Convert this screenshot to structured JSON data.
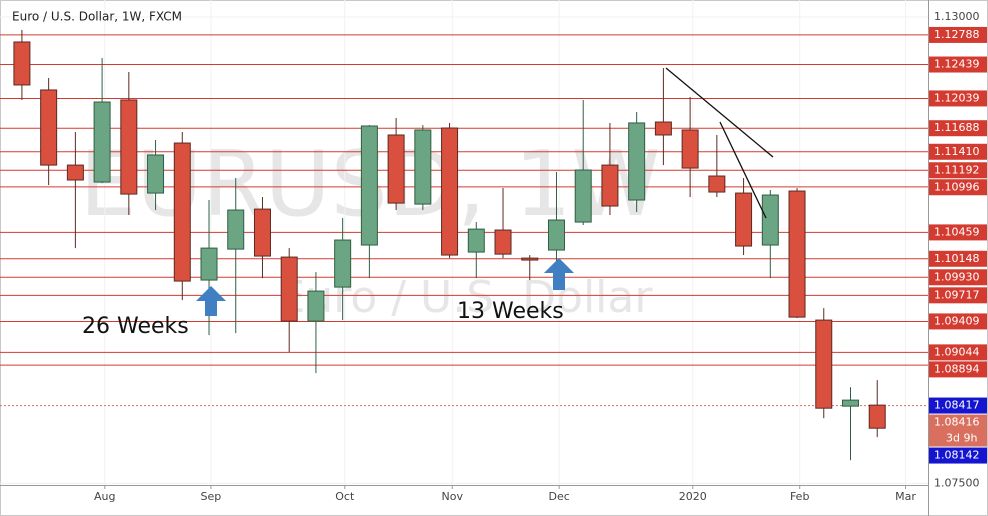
{
  "chart_data": {
    "type": "candlestick",
    "title": "Euro / U.S. Dollar, 1W, FXCM",
    "watermark": [
      "EURUSD, 1W",
      "Euro / U.S. Dollar"
    ],
    "annotations": [
      "26 Weeks",
      "13 Weeks"
    ],
    "categories": [
      null,
      null,
      null,
      null,
      null,
      null,
      null,
      null,
      null,
      null,
      null,
      null,
      null,
      null,
      null,
      null,
      null,
      null,
      null,
      null,
      null,
      null,
      null,
      null,
      null,
      null,
      null,
      null,
      null,
      null,
      null,
      null,
      null
    ],
    "open": [
      1.12705,
      1.12139,
      1.11253,
      1.11053,
      1.12021,
      1.10923,
      1.11513,
      1.09897,
      1.10262,
      1.10734,
      1.10168,
      1.09413,
      1.09814,
      1.1031,
      1.11608,
      1.10793,
      1.1169,
      1.10227,
      1.10487,
      1.10156,
      1.10251,
      1.10581,
      1.11253,
      1.10841,
      1.11761,
      1.11667,
      1.11124,
      1.10923,
      1.1031,
      1.10947,
      1.09425,
      1.0841,
      1.08422
    ],
    "high": [
      1.12847,
      1.1228,
      1.11643,
      1.12516,
      1.12351,
      1.11549,
      1.11643,
      1.10841,
      1.111,
      1.10876,
      1.10274,
      1.09991,
      1.10628,
      1.11726,
      1.11808,
      1.11726,
      1.1175,
      1.10581,
      1.10982,
      1.10192,
      1.11171,
      1.12021,
      1.1175,
      1.11879,
      1.12398,
      1.12056,
      1.11608,
      1.111,
      1.10959,
      1.10982,
      1.09566,
      1.08634,
      1.08717
    ],
    "low": [
      1.12021,
      1.11017,
      1.10274,
      1.11041,
      1.10664,
      1.10723,
      1.09661,
      1.09248,
      1.09271,
      1.0992,
      1.09047,
      1.088,
      1.09425,
      1.0992,
      1.10723,
      1.10723,
      1.10156,
      1.0992,
      1.10156,
      1.09897,
      1.10109,
      1.10546,
      1.10664,
      1.10699,
      1.11253,
      1.10876,
      1.10876,
      1.10192,
      1.0992,
      1.09448,
      1.08268,
      1.07773,
      1.08044
    ],
    "close": [
      1.12198,
      1.11253,
      1.11077,
      1.11997,
      1.10911,
      1.11372,
      1.09885,
      1.10274,
      1.10723,
      1.1018,
      1.09413,
      1.09767,
      1.10369,
      1.11714,
      1.10805,
      1.11667,
      1.10192,
      1.10498,
      1.10203,
      1.10133,
      1.10605,
      1.11195,
      1.1077,
      1.1175,
      1.11608,
      1.11218,
      1.10935,
      1.10298,
      1.109,
      1.0946,
      1.08386,
      1.08481,
      1.0815
    ],
    "up_color": "#6ba583",
    "down_color": "#d9503f",
    "xlim": [
      -0.82,
      33.9
    ],
    "xticks": [
      {
        "value": 3.1,
        "label": "Aug"
      },
      {
        "value": 7.07,
        "label": "Sep"
      },
      {
        "value": 12.08,
        "label": "Oct"
      },
      {
        "value": 16.1,
        "label": "Nov"
      },
      {
        "value": 20.1,
        "label": "Dec"
      },
      {
        "value": 25.1,
        "label": "2020"
      },
      {
        "value": 29.1,
        "label": "Feb"
      },
      {
        "value": 33.06,
        "label": "Mar"
      }
    ],
    "ylim": [
      1.0748,
      1.132
    ],
    "yticks": [
      {
        "value": 1.13,
        "label": "1.13000"
      },
      {
        "value": 1.075,
        "label": "1.07500"
      }
    ],
    "levels": [
      1.12788,
      1.12439,
      1.12039,
      1.11688,
      {
        "value": 1.1141,
        "label": "1.11410"
      },
      1.11192,
      1.10996,
      1.10459,
      1.10148,
      {
        "value": 1.0993,
        "label": "1.09930"
      },
      1.09717,
      1.09409,
      1.09044,
      1.08894
    ],
    "level_color": "#d33a30",
    "last_price": 1.08416,
    "countdown": "3d 9h",
    "last_color": "#d9705f",
    "quotes": [
      1.08417,
      1.08142
    ],
    "quote_color": "#1515d0",
    "grid": true
  }
}
